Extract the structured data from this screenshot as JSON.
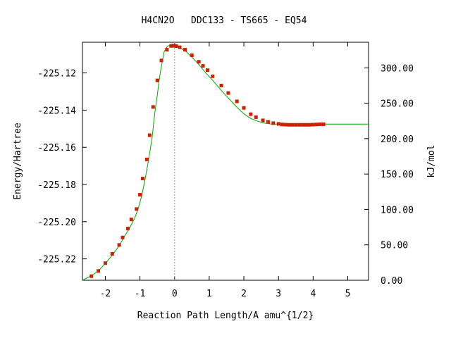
{
  "chart_data": {
    "type": "line",
    "title": "H4CN2O   DDC133 - TS665 - EQ54",
    "xlabel": "Reaction Path Length/A amu^{1/2}",
    "ylabel": "Energy/Hartree",
    "y2label": "kJ/mol",
    "xlim": [
      -2.66,
      5.6
    ],
    "ylim": [
      -225.2315,
      -225.1035
    ],
    "y2lim": [
      0.0,
      336.1
    ],
    "x_ticks": [
      {
        "v": -2,
        "label": "-2"
      },
      {
        "v": -1,
        "label": "-1"
      },
      {
        "v": 0,
        "label": "0"
      },
      {
        "v": 1,
        "label": "1"
      },
      {
        "v": 2,
        "label": "2"
      },
      {
        "v": 3,
        "label": "3"
      },
      {
        "v": 4,
        "label": "4"
      },
      {
        "v": 5,
        "label": "5"
      }
    ],
    "y_ticks": [
      {
        "v": -225.12,
        "label": "-225.12"
      },
      {
        "v": -225.14,
        "label": "-225.14"
      },
      {
        "v": -225.16,
        "label": "-225.16"
      },
      {
        "v": -225.18,
        "label": "-225.18"
      },
      {
        "v": -225.2,
        "label": "-225.20"
      },
      {
        "v": -225.22,
        "label": "-225.22"
      }
    ],
    "y2_ticks": [
      {
        "v": 300,
        "label": "300.00"
      },
      {
        "v": 250,
        "label": "250.00"
      },
      {
        "v": 200,
        "label": "200.00"
      },
      {
        "v": 150,
        "label": "150.00"
      },
      {
        "v": 100,
        "label": "100.00"
      },
      {
        "v": 50,
        "label": "50.00"
      },
      {
        "v": 0,
        "label": "0.00"
      }
    ],
    "ts_x": 0.0,
    "curve": {
      "color": "#00aa00",
      "x": [
        -2.66,
        -2.4,
        -2.2,
        -2.0,
        -1.8,
        -1.6,
        -1.45,
        -1.3,
        -1.15,
        -1.05,
        -0.95,
        -0.85,
        -0.75,
        -0.65,
        -0.6,
        -0.55,
        -0.5,
        -0.45,
        -0.4,
        -0.3,
        -0.2,
        -0.1,
        0.0,
        0.1,
        0.3,
        0.5,
        0.7,
        0.9,
        1.1,
        1.4,
        1.6,
        1.8,
        2.0,
        2.2,
        2.4,
        2.6,
        2.8,
        3.0,
        3.3,
        3.6,
        4.0,
        4.3,
        5.6
      ],
      "y": [
        -225.2315,
        -225.229,
        -225.2265,
        -225.2225,
        -225.218,
        -225.213,
        -225.208,
        -225.2035,
        -225.198,
        -225.193,
        -225.186,
        -225.177,
        -225.1665,
        -225.155,
        -225.146,
        -225.1385,
        -225.132,
        -225.1245,
        -225.1185,
        -225.1085,
        -225.1055,
        -225.105,
        -225.1055,
        -225.106,
        -225.108,
        -225.1115,
        -225.1155,
        -225.12,
        -225.124,
        -225.1305,
        -225.1345,
        -225.1385,
        -225.142,
        -225.1445,
        -225.146,
        -225.147,
        -225.1475,
        -225.1475,
        -225.148,
        -225.148,
        -225.148,
        -225.1475,
        -225.1475
      ]
    },
    "points": {
      "color": "#cc2200",
      "x": [
        -2.4,
        -2.2,
        -2.0,
        -1.8,
        -1.6,
        -1.5,
        -1.35,
        -1.25,
        -1.1,
        -1.0,
        -0.92,
        -0.8,
        -0.72,
        -0.62,
        -0.5,
        -0.38,
        -0.22,
        -0.1,
        -0.05,
        0.0,
        0.05,
        0.15,
        0.3,
        0.5,
        0.7,
        0.82,
        0.95,
        1.1,
        1.35,
        1.55,
        1.8,
        2.0,
        2.2,
        2.35,
        2.55,
        2.7,
        2.85,
        3.0,
        3.1,
        3.2,
        3.3,
        3.4,
        3.5,
        3.6,
        3.7,
        3.8,
        3.9,
        4.0,
        4.1,
        4.2,
        4.3
      ],
      "y": [
        -225.2293,
        -225.2265,
        -225.2223,
        -225.2173,
        -225.2125,
        -225.2085,
        -225.2037,
        -225.1988,
        -225.1932,
        -225.1855,
        -225.1768,
        -225.1665,
        -225.1535,
        -225.1383,
        -225.124,
        -225.1133,
        -225.1075,
        -225.1055,
        -225.1053,
        -225.1054,
        -225.1056,
        -225.1062,
        -225.1075,
        -225.1105,
        -225.114,
        -225.1162,
        -225.1185,
        -225.1218,
        -225.1268,
        -225.1308,
        -225.1353,
        -225.1388,
        -225.1422,
        -225.1438,
        -225.1455,
        -225.1463,
        -225.147,
        -225.1474,
        -225.1477,
        -225.1478,
        -225.1479,
        -225.1479,
        -225.1479,
        -225.1479,
        -225.1479,
        -225.1479,
        -225.1479,
        -225.1478,
        -225.1477,
        -225.1476,
        -225.1476
      ]
    }
  }
}
